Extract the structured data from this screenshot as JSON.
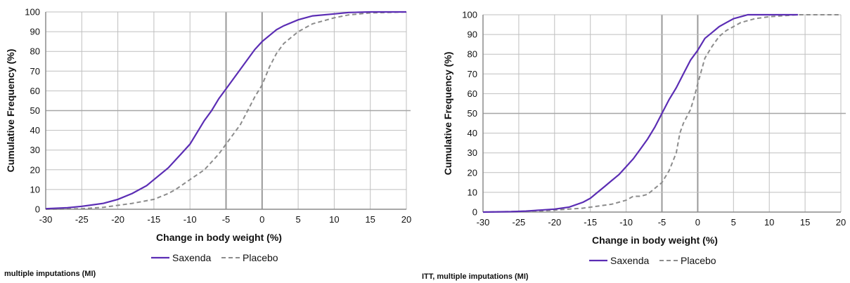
{
  "colors": {
    "saxenda": "#5b2db4",
    "placebo": "#8c8c8c",
    "grid": "#bfbfbf",
    "axis": "#8c8c8c"
  },
  "chart_data": [
    {
      "type": "line",
      "title": "",
      "xlabel": "Change in body weight (%)",
      "ylabel": "Cumulative Frequency (%)",
      "xlim": [
        -30,
        20
      ],
      "ylim": [
        0,
        100
      ],
      "xticks": [
        "-30",
        "-25",
        "-20",
        "-15",
        "-10",
        "-5",
        "0",
        "5",
        "10",
        "15",
        "20"
      ],
      "yticks": [
        "0",
        "10",
        "20",
        "30",
        "40",
        "50",
        "60",
        "70",
        "80",
        "90",
        "100"
      ],
      "grid": true,
      "legend_position": "bottom",
      "series": [
        {
          "name": "Saxenda",
          "style": "solid",
          "color": "#5b2db4",
          "points": [
            [
              -30,
              0.3
            ],
            [
              -27,
              0.8
            ],
            [
              -25,
              1.5
            ],
            [
              -22,
              3
            ],
            [
              -20,
              5
            ],
            [
              -18,
              8
            ],
            [
              -16,
              12
            ],
            [
              -15,
              15
            ],
            [
              -13,
              21
            ],
            [
              -12,
              25
            ],
            [
              -10,
              33
            ],
            [
              -8,
              45
            ],
            [
              -7,
              50
            ],
            [
              -6,
              56
            ],
            [
              -5,
              61
            ],
            [
              -4,
              66
            ],
            [
              -3,
              71
            ],
            [
              -2,
              76
            ],
            [
              -1,
              81
            ],
            [
              0,
              85
            ],
            [
              1,
              88
            ],
            [
              2,
              91
            ],
            [
              3,
              93
            ],
            [
              5,
              96
            ],
            [
              7,
              98
            ],
            [
              10,
              99
            ],
            [
              12,
              99.7
            ],
            [
              15,
              100
            ],
            [
              20,
              100
            ]
          ]
        },
        {
          "name": "Placebo",
          "style": "dashed",
          "color": "#8c8c8c",
          "points": [
            [
              -30,
              0
            ],
            [
              -25,
              0.3
            ],
            [
              -22,
              1
            ],
            [
              -20,
              2
            ],
            [
              -18,
              3
            ],
            [
              -15,
              5
            ],
            [
              -13,
              8
            ],
            [
              -12,
              10
            ],
            [
              -10,
              15
            ],
            [
              -8,
              20
            ],
            [
              -7,
              24
            ],
            [
              -6,
              28
            ],
            [
              -5,
              33
            ],
            [
              -4,
              38
            ],
            [
              -3,
              43
            ],
            [
              -2,
              50
            ],
            [
              -1,
              57
            ],
            [
              0,
              63
            ],
            [
              1,
              72
            ],
            [
              2,
              79
            ],
            [
              3,
              84
            ],
            [
              5,
              90
            ],
            [
              7,
              94
            ],
            [
              10,
              97
            ],
            [
              12,
              98.5
            ],
            [
              15,
              99.5
            ],
            [
              20,
              100
            ]
          ]
        }
      ]
    },
    {
      "type": "line",
      "title": "",
      "xlabel": "Change in body weight (%)",
      "ylabel": "Cumulative Frequency (%)",
      "xlim": [
        -30,
        20
      ],
      "ylim": [
        0,
        100
      ],
      "xticks": [
        "-30",
        "-25",
        "-20",
        "-15",
        "-10",
        "-5",
        "0",
        "5",
        "10",
        "15",
        "20"
      ],
      "yticks": [
        "0",
        "10",
        "20",
        "30",
        "40",
        "50",
        "60",
        "70",
        "80",
        "90",
        "100"
      ],
      "grid": true,
      "legend_position": "bottom",
      "series": [
        {
          "name": "Saxenda",
          "style": "solid",
          "color": "#5b2db4",
          "points": [
            [
              -30,
              0
            ],
            [
              -26,
              0.2
            ],
            [
              -24,
              0.5
            ],
            [
              -22,
              1
            ],
            [
              -20,
              1.5
            ],
            [
              -18,
              2.5
            ],
            [
              -16,
              5
            ],
            [
              -15,
              7
            ],
            [
              -14,
              10
            ],
            [
              -13,
              13
            ],
            [
              -12,
              16
            ],
            [
              -11,
              19
            ],
            [
              -10,
              23
            ],
            [
              -9,
              27
            ],
            [
              -8,
              32
            ],
            [
              -7,
              37
            ],
            [
              -6,
              43
            ],
            [
              -5,
              50
            ],
            [
              -4,
              57
            ],
            [
              -3,
              63
            ],
            [
              -2,
              70
            ],
            [
              -1,
              77
            ],
            [
              0,
              82
            ],
            [
              1,
              88
            ],
            [
              2,
              91
            ],
            [
              3,
              94
            ],
            [
              4,
              96
            ],
            [
              5,
              98
            ],
            [
              6,
              99
            ],
            [
              7,
              100
            ],
            [
              14,
              100
            ]
          ]
        },
        {
          "name": "Placebo",
          "style": "dashed",
          "color": "#8c8c8c",
          "points": [
            [
              -30,
              0
            ],
            [
              -22,
              0.5
            ],
            [
              -20,
              1
            ],
            [
              -18,
              1.5
            ],
            [
              -16,
              2
            ],
            [
              -14,
              3
            ],
            [
              -12,
              4
            ],
            [
              -10,
              6
            ],
            [
              -9,
              8
            ],
            [
              -8,
              8
            ],
            [
              -7,
              9
            ],
            [
              -6,
              12
            ],
            [
              -5,
              15
            ],
            [
              -4,
              21
            ],
            [
              -3,
              30
            ],
            [
              -2.5,
              40
            ],
            [
              -2,
              45
            ],
            [
              -1,
              52
            ],
            [
              -0.5,
              58
            ],
            [
              0,
              65
            ],
            [
              1,
              78
            ],
            [
              2,
              84
            ],
            [
              3,
              89
            ],
            [
              4,
              92
            ],
            [
              5,
              94
            ],
            [
              6,
              96
            ],
            [
              8,
              98
            ],
            [
              10,
              99
            ],
            [
              14,
              100
            ],
            [
              20,
              100
            ]
          ]
        }
      ]
    }
  ],
  "footnotes": [
    "multiple imputations (MI)",
    "ITT, multiple imputations (MI)"
  ]
}
